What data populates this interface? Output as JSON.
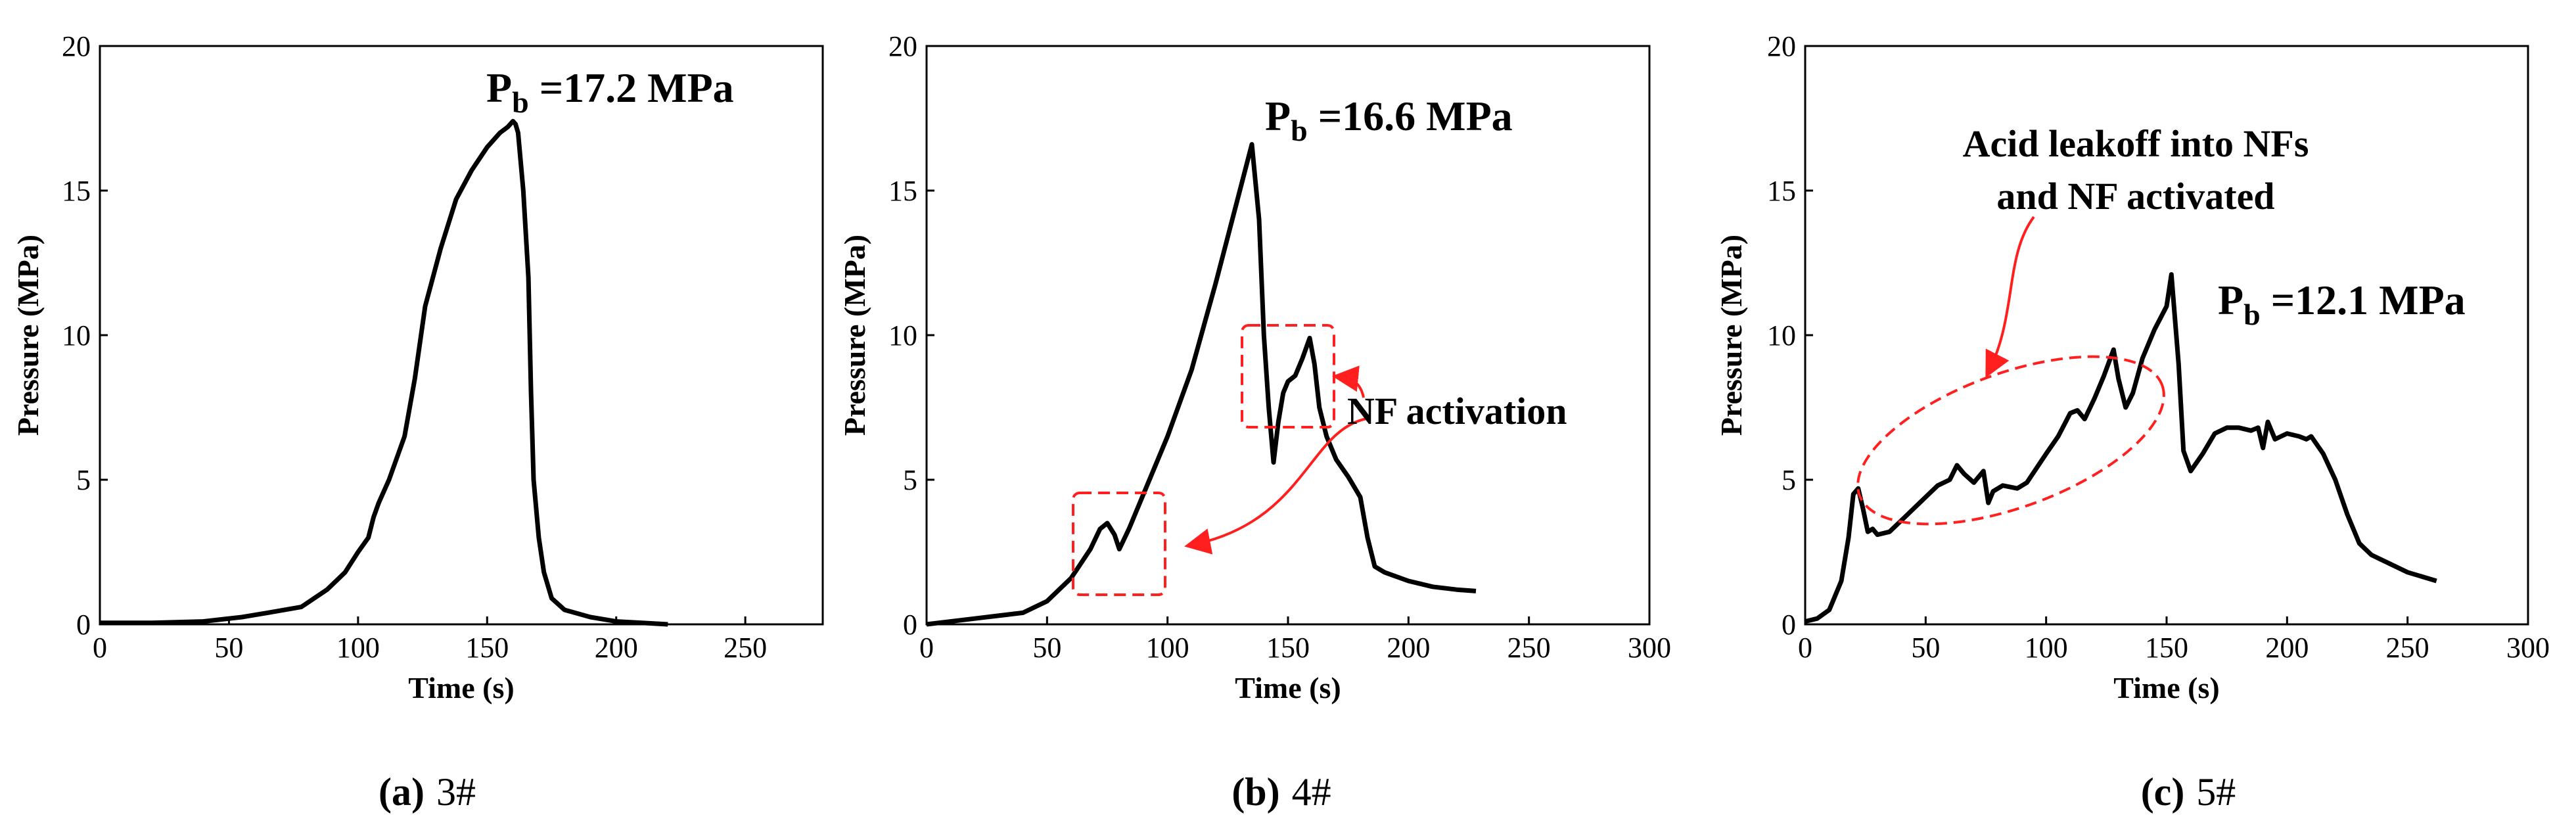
{
  "figure": {
    "captions": [
      {
        "letter": "(a)",
        "sample": "3#"
      },
      {
        "letter": "(b)",
        "sample": "4#"
      },
      {
        "letter": "(c)",
        "sample": "5#"
      }
    ]
  },
  "chart_data": [
    {
      "type": "line",
      "title": "",
      "xlabel": "Time (s)",
      "ylabel": "Pressure (MPa)",
      "xlim": [
        0,
        280
      ],
      "ylim": [
        0,
        20
      ],
      "xticks": [
        "0",
        "50",
        "100",
        "150",
        "200",
        "250"
      ],
      "yticks": [
        "0",
        "5",
        "10",
        "15",
        "20"
      ],
      "series": [
        {
          "name": "3#",
          "x": [
            0,
            20,
            40,
            55,
            65,
            78,
            88,
            95,
            100,
            104,
            106,
            108,
            112,
            118,
            122,
            126,
            132,
            138,
            144,
            150,
            155,
            158,
            160,
            161,
            162,
            164,
            166,
            167,
            168,
            170,
            172,
            175,
            180,
            190,
            200,
            210,
            220
          ],
          "y": [
            0.05,
            0.05,
            0.1,
            0.25,
            0.4,
            0.6,
            1.2,
            1.8,
            2.5,
            3.0,
            3.7,
            4.2,
            5.0,
            6.5,
            8.5,
            11.0,
            13.0,
            14.7,
            15.7,
            16.5,
            17.0,
            17.2,
            17.4,
            17.3,
            17.0,
            15.0,
            12.0,
            8.0,
            5.0,
            3.0,
            1.8,
            0.9,
            0.5,
            0.25,
            0.1,
            0.05,
            0.0
          ]
        }
      ],
      "annotations": {
        "pb_prefix": "P",
        "pb_subscript": "b",
        "pb_value": " =17.2 MPa"
      }
    },
    {
      "type": "line",
      "title": "",
      "xlabel": "Time (s)",
      "ylabel": "Pressure (MPa)",
      "xlim": [
        0,
        300
      ],
      "ylim": [
        0,
        20
      ],
      "xticks": [
        "0",
        "50",
        "100",
        "150",
        "200",
        "250",
        "300"
      ],
      "yticks": [
        "0",
        "5",
        "10",
        "15",
        "20"
      ],
      "series": [
        {
          "name": "4#",
          "x": [
            0,
            20,
            40,
            50,
            60,
            68,
            72,
            75,
            78,
            80,
            84,
            90,
            100,
            110,
            120,
            130,
            135,
            138,
            140,
            142,
            144,
            146,
            148,
            150,
            153,
            156,
            159,
            161,
            163,
            166,
            170,
            175,
            180,
            183,
            186,
            190,
            200,
            210,
            220,
            228
          ],
          "y": [
            0.0,
            0.2,
            0.4,
            0.8,
            1.6,
            2.6,
            3.3,
            3.5,
            3.1,
            2.6,
            3.3,
            4.5,
            6.5,
            8.8,
            11.8,
            15.0,
            16.6,
            14.0,
            10.0,
            7.5,
            5.6,
            7.0,
            8.0,
            8.4,
            8.6,
            9.2,
            9.9,
            9.0,
            7.5,
            6.5,
            5.7,
            5.1,
            4.4,
            3.0,
            2.0,
            1.8,
            1.5,
            1.3,
            1.2,
            1.15
          ]
        }
      ],
      "annotations": {
        "pb_prefix": "P",
        "pb_subscript": "b",
        "pb_value": " =16.6 MPa",
        "nf_label": "NF activation"
      }
    },
    {
      "type": "line",
      "title": "",
      "xlabel": "Time (s)",
      "ylabel": "Pressure (MPa)",
      "xlim": [
        0,
        300
      ],
      "ylim": [
        0,
        20
      ],
      "xticks": [
        "0",
        "50",
        "100",
        "150",
        "200",
        "250",
        "300"
      ],
      "yticks": [
        "0",
        "5",
        "10",
        "15",
        "20"
      ],
      "series": [
        {
          "name": "5#",
          "x": [
            0,
            5,
            10,
            15,
            18,
            20,
            22,
            24,
            26,
            28,
            30,
            35,
            40,
            45,
            50,
            55,
            60,
            63,
            66,
            70,
            74,
            76,
            78,
            82,
            88,
            92,
            96,
            100,
            105,
            110,
            113,
            116,
            120,
            124,
            128,
            130,
            133,
            136,
            140,
            145,
            150,
            152,
            155,
            157,
            160,
            165,
            170,
            175,
            180,
            185,
            188,
            190,
            192,
            195,
            200,
            205,
            208,
            210,
            215,
            220,
            225,
            230,
            235,
            240,
            250,
            262
          ],
          "y": [
            0.1,
            0.2,
            0.5,
            1.5,
            3.0,
            4.5,
            4.7,
            4.0,
            3.2,
            3.3,
            3.1,
            3.2,
            3.6,
            4.0,
            4.4,
            4.8,
            5.0,
            5.5,
            5.2,
            4.9,
            5.3,
            4.2,
            4.6,
            4.8,
            4.7,
            4.9,
            5.4,
            5.9,
            6.5,
            7.3,
            7.4,
            7.1,
            7.8,
            8.6,
            9.5,
            8.5,
            7.5,
            8.0,
            9.2,
            10.2,
            11.0,
            12.1,
            9.0,
            6.0,
            5.3,
            5.9,
            6.6,
            6.8,
            6.8,
            6.7,
            6.8,
            6.1,
            7.0,
            6.4,
            6.6,
            6.5,
            6.4,
            6.5,
            5.9,
            5.0,
            3.8,
            2.8,
            2.4,
            2.2,
            1.8,
            1.5
          ]
        }
      ],
      "annotations": {
        "pb_prefix": "P",
        "pb_subscript": "b",
        "pb_value": " =12.1 MPa",
        "acid_line1": "Acid leakoff into NFs",
        "acid_line2": "and NF activated"
      }
    }
  ]
}
